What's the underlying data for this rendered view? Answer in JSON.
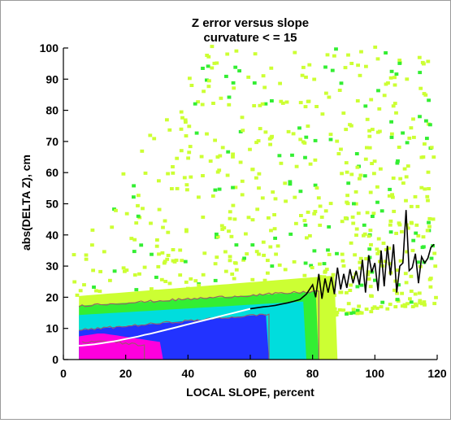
{
  "chart_data": {
    "type": "heatmap",
    "title": "Z error versus slope",
    "subtitle": "curvature < = 15",
    "xlabel": "LOCAL SLOPE, percent",
    "ylabel": "abs(DELTA Z), cm",
    "xlim": [
      0,
      120
    ],
    "ylim": [
      0,
      100
    ],
    "xticks": [
      "0",
      "20",
      "40",
      "60",
      "80",
      "100",
      "120"
    ],
    "yticks": [
      "0",
      "10",
      "20",
      "30",
      "40",
      "50",
      "60",
      "70",
      "80",
      "90",
      "100"
    ],
    "colors": {
      "sparse": "#ccff33",
      "low": "#33ee33",
      "mid": "#00dddd",
      "high": "#2233ff",
      "peak": "#ff00dd",
      "contour": "#9a5a6a"
    },
    "mean_line": {
      "x": [
        0,
        2,
        4,
        6,
        8,
        10,
        12,
        14,
        16,
        18,
        20,
        22,
        24,
        26,
        28,
        30,
        32,
        34,
        36,
        38,
        40,
        42,
        44,
        46,
        48,
        50,
        52,
        54,
        56,
        58,
        60,
        62,
        64,
        66,
        68,
        70,
        72,
        74,
        76,
        78,
        80,
        81,
        82,
        83,
        84,
        85,
        86,
        87,
        88,
        89,
        90,
        91,
        92,
        93,
        94,
        95,
        96,
        97,
        98,
        99,
        100,
        101,
        102,
        103,
        104,
        105,
        106,
        107,
        108,
        109,
        110,
        111,
        112,
        113,
        114,
        115,
        116,
        117,
        118,
        119
      ],
      "y": [
        4.2,
        4.3,
        4.4,
        4.5,
        4.7,
        4.9,
        5.2,
        5.5,
        5.8,
        6.2,
        6.6,
        7.0,
        7.4,
        7.9,
        8.3,
        8.8,
        9.3,
        9.8,
        10.3,
        10.8,
        11.3,
        11.8,
        12.3,
        12.8,
        13.3,
        13.8,
        14.3,
        14.8,
        15.3,
        15.8,
        16.3,
        16.6,
        16.9,
        17.1,
        17.4,
        17.8,
        18.2,
        18.7,
        19.3,
        21.0,
        24.0,
        20.0,
        27.5,
        19.5,
        26.0,
        21.5,
        26.5,
        21.0,
        29.5,
        22.5,
        27.5,
        23.0,
        29.0,
        24.5,
        28.5,
        24.0,
        32.0,
        21.5,
        33.5,
        28.0,
        31.0,
        22.0,
        35.0,
        23.5,
        36.5,
        27.0,
        37.0,
        21.5,
        30.0,
        31.0,
        48.0,
        28.5,
        29.5,
        34.0,
        24.5,
        33.0,
        31.0,
        32.5,
        36.0,
        37.0
      ]
    }
  }
}
